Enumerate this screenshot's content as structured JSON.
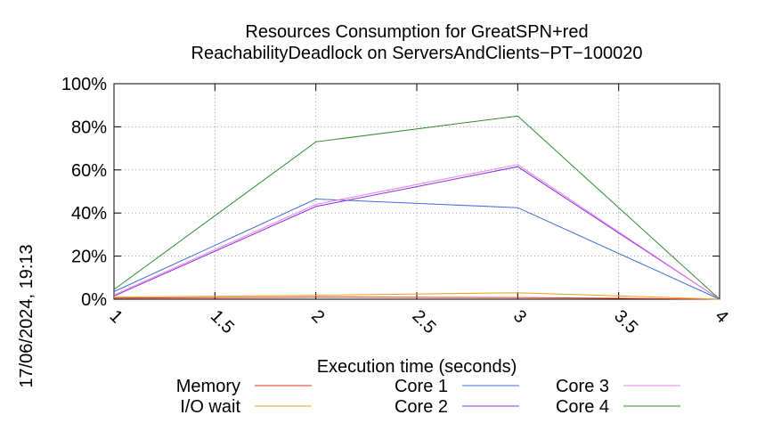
{
  "chart_data": {
    "type": "line",
    "title": "Resources Consumption for GreatSPN+red",
    "subtitle": "ReachabilityDeadlock on ServersAndClients−PT−100020",
    "xlabel": "Execution time (seconds)",
    "ylabel": "",
    "xlim": [
      1,
      4
    ],
    "ylim": [
      0,
      100
    ],
    "x_ticks": [
      "1",
      "1.5",
      "2",
      "2.5",
      "3",
      "3.5",
      "4"
    ],
    "y_ticks": [
      "0%",
      "20%",
      "40%",
      "60%",
      "80%",
      "100%"
    ],
    "grid": true,
    "legend_position": "bottom",
    "timestamp": "17/06/2024, 19:13",
    "series": [
      {
        "name": "Memory",
        "color": "#e8321e",
        "x": [
          1,
          2,
          3,
          4
        ],
        "values": [
          0.5,
          1.0,
          0.8,
          0
        ]
      },
      {
        "name": "I/O wait",
        "color": "#e8a317",
        "x": [
          1,
          2,
          3,
          4
        ],
        "values": [
          1.0,
          1.8,
          3.0,
          0
        ]
      },
      {
        "name": "Core 1",
        "color": "#3b6fd4",
        "x": [
          1,
          2,
          3,
          4
        ],
        "values": [
          3.5,
          46.5,
          42.5,
          0
        ]
      },
      {
        "name": "Core 2",
        "color": "#8a2be2",
        "x": [
          1,
          2,
          3,
          4
        ],
        "values": [
          1.5,
          43,
          61.5,
          0
        ]
      },
      {
        "name": "Core 3",
        "color": "#ee82ee",
        "x": [
          1,
          2,
          3,
          4
        ],
        "values": [
          2,
          44,
          62.5,
          0
        ]
      },
      {
        "name": "Core 4",
        "color": "#2e8b2e",
        "x": [
          1,
          2,
          3,
          4
        ],
        "values": [
          4.5,
          73,
          85,
          0
        ]
      }
    ]
  }
}
